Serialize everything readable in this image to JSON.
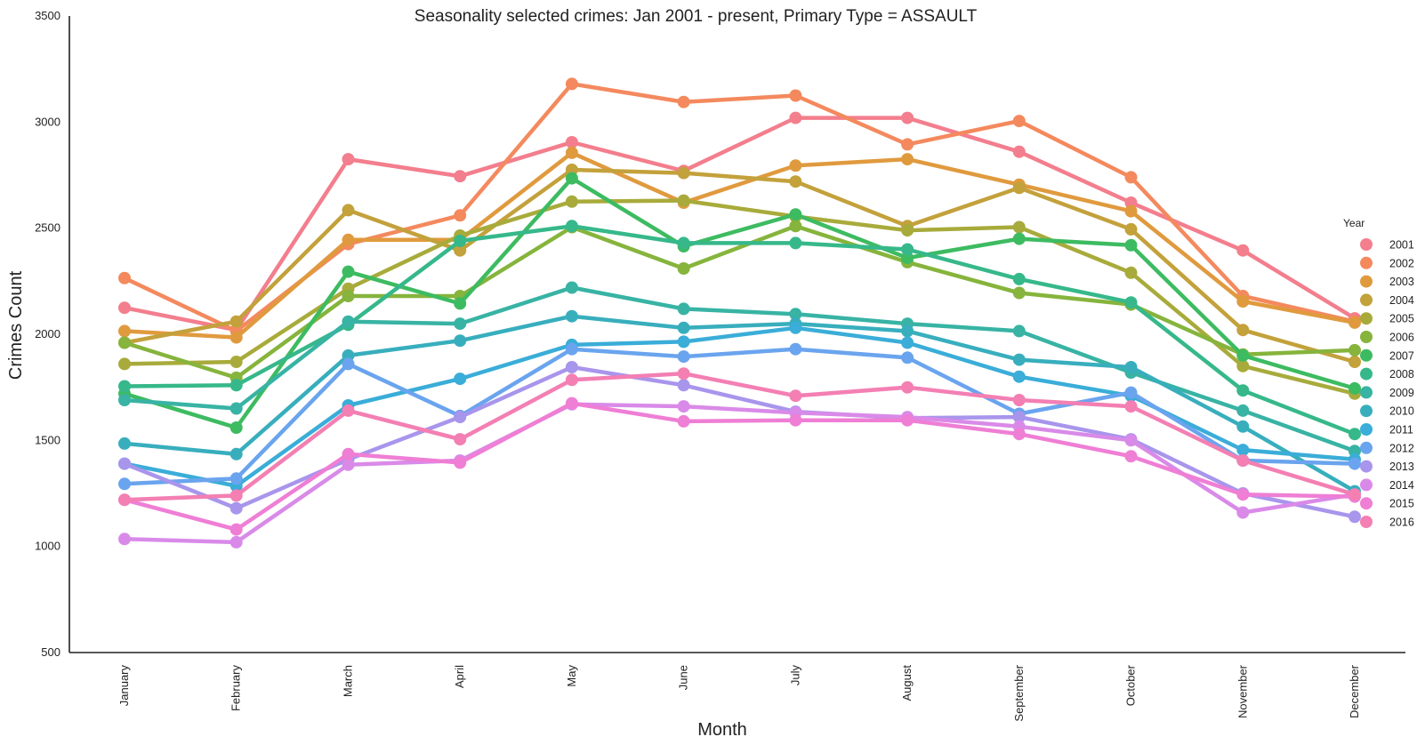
{
  "chart_data": {
    "type": "line",
    "title": "Seasonality selected crimes: Jan 2001 - present, Primary Type = ASSAULT",
    "xlabel": "Month",
    "ylabel": "Crimes Count",
    "ylim": [
      500,
      3500
    ],
    "yticks": [
      500,
      1000,
      1500,
      2000,
      2500,
      3000,
      3500
    ],
    "grid": false,
    "legend": {
      "title": "Year",
      "placement": "right"
    },
    "categories": [
      "January",
      "February",
      "March",
      "April",
      "May",
      "June",
      "July",
      "August",
      "September",
      "October",
      "November",
      "December"
    ],
    "series": [
      {
        "name": "2001",
        "color": "#f37e8d",
        "values": [
          2125,
          2020,
          2825,
          2745,
          2905,
          2770,
          3020,
          3020,
          2860,
          2620,
          2395,
          2075
        ]
      },
      {
        "name": "2002",
        "color": "#f4895e",
        "values": [
          2265,
          2015,
          2425,
          2560,
          3180,
          3095,
          3125,
          2895,
          3005,
          2740,
          2180,
          2060
        ]
      },
      {
        "name": "2003",
        "color": "#e09a3e",
        "values": [
          2015,
          1985,
          2445,
          2445,
          2855,
          2620,
          2795,
          2825,
          2705,
          2580,
          2155,
          2055
        ]
      },
      {
        "name": "2004",
        "color": "#c3a13b",
        "values": [
          1960,
          2060,
          2585,
          2395,
          2775,
          2760,
          2720,
          2510,
          2690,
          2495,
          2020,
          1870
        ]
      },
      {
        "name": "2005",
        "color": "#a8ab3b",
        "values": [
          1860,
          1870,
          2215,
          2465,
          2625,
          2630,
          2555,
          2490,
          2505,
          2290,
          1850,
          1720
        ]
      },
      {
        "name": "2006",
        "color": "#86b43c",
        "values": [
          1960,
          1795,
          2180,
          2180,
          2505,
          2310,
          2510,
          2340,
          2195,
          2140,
          1905,
          1925
        ]
      },
      {
        "name": "2007",
        "color": "#3dbb61",
        "values": [
          1720,
          1560,
          2295,
          2145,
          2735,
          2415,
          2565,
          2360,
          2450,
          2420,
          1900,
          1745
        ]
      },
      {
        "name": "2008",
        "color": "#36b88a",
        "values": [
          1755,
          1760,
          2045,
          2440,
          2510,
          2430,
          2430,
          2400,
          2260,
          2150,
          1735,
          1530
        ]
      },
      {
        "name": "2009",
        "color": "#38b3a4",
        "values": [
          1690,
          1650,
          2060,
          2050,
          2220,
          2120,
          2095,
          2050,
          2015,
          1820,
          1640,
          1450
        ]
      },
      {
        "name": "2010",
        "color": "#38aebd",
        "values": [
          1485,
          1435,
          1900,
          1970,
          2085,
          2030,
          2050,
          2015,
          1880,
          1845,
          1565,
          1260
        ]
      },
      {
        "name": "2011",
        "color": "#3aadd8",
        "values": [
          1390,
          1285,
          1665,
          1790,
          1950,
          1965,
          2030,
          1960,
          1800,
          1710,
          1455,
          1410
        ]
      },
      {
        "name": "2012",
        "color": "#6aa4ee",
        "values": [
          1295,
          1320,
          1860,
          1615,
          1930,
          1895,
          1930,
          1890,
          1625,
          1725,
          1405,
          1390
        ]
      },
      {
        "name": "2013",
        "color": "#a895ec",
        "values": [
          1390,
          1180,
          1410,
          1610,
          1845,
          1760,
          1635,
          1605,
          1610,
          1505,
          1250,
          1140
        ]
      },
      {
        "name": "2014",
        "color": "#d98ae8",
        "values": [
          1035,
          1020,
          1385,
          1405,
          1670,
          1660,
          1630,
          1610,
          1565,
          1500,
          1160,
          1245
        ]
      },
      {
        "name": "2015",
        "color": "#ef7ed5",
        "values": [
          1220,
          1080,
          1435,
          1395,
          1675,
          1590,
          1595,
          1595,
          1530,
          1425,
          1245,
          1235
        ]
      },
      {
        "name": "2016",
        "color": "#f37fb3",
        "values": [
          1220,
          1240,
          1640,
          1505,
          1785,
          1815,
          1710,
          1750,
          1690,
          1660,
          1405,
          1245
        ]
      }
    ]
  }
}
